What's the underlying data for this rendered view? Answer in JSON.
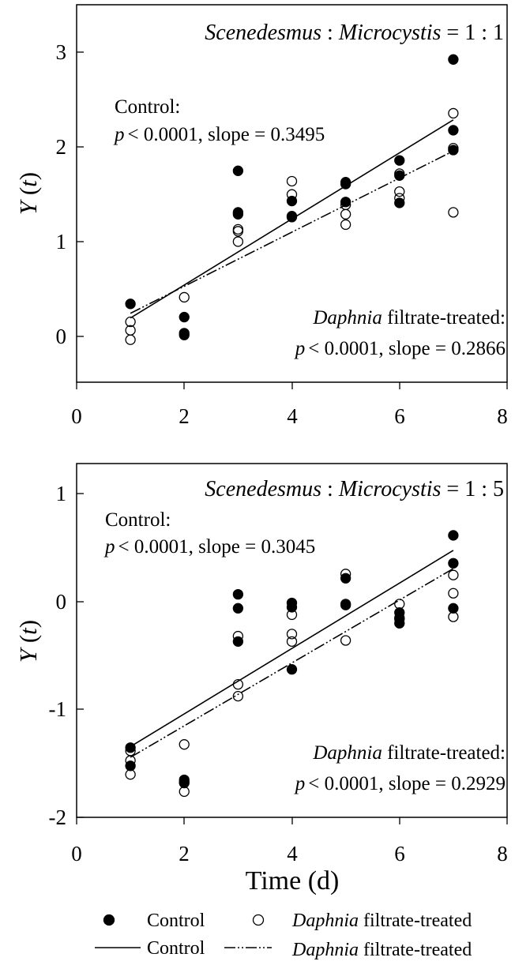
{
  "chart_data": [
    {
      "type": "scatter",
      "title_parts": [
        "Scenedesmus",
        " : ",
        "Microcystis",
        " = 1 : 1"
      ],
      "xlabel": "",
      "ylabel_parts": [
        "Y",
        " (",
        "t",
        ")"
      ],
      "xlim": [
        0,
        8
      ],
      "ylim": [
        -0.5,
        3.5
      ],
      "xticks": [
        "0",
        "2",
        "4",
        "6",
        "8"
      ],
      "xtick_values": [
        0,
        2,
        4,
        6,
        8
      ],
      "yticks": [
        "0",
        "1",
        "2",
        "3"
      ],
      "ytick_values": [
        0,
        1,
        2,
        3
      ],
      "series": [
        {
          "name": "Control",
          "marker": "filled-circle",
          "points": [
            [
              1,
              0.33
            ],
            [
              2,
              0.19
            ],
            [
              2,
              0.02
            ],
            [
              2,
              0.0
            ],
            [
              3,
              1.74
            ],
            [
              3,
              1.3
            ],
            [
              3,
              1.28
            ],
            [
              4,
              1.42
            ],
            [
              4,
              1.25
            ],
            [
              5,
              1.62
            ],
            [
              5,
              1.6
            ],
            [
              5,
              1.41
            ],
            [
              6,
              1.85
            ],
            [
              6,
              1.69
            ],
            [
              6,
              1.4
            ],
            [
              7,
              2.92
            ],
            [
              7,
              2.17
            ],
            [
              7,
              1.96
            ]
          ]
        },
        {
          "name": "Daphnia filtrate-treated",
          "marker": "open-circle",
          "points": [
            [
              1,
              0.14
            ],
            [
              1,
              0.05
            ],
            [
              1,
              -0.05
            ],
            [
              2,
              0.4
            ],
            [
              3,
              1.12
            ],
            [
              3,
              1.1
            ],
            [
              3,
              0.99
            ],
            [
              4,
              1.63
            ],
            [
              4,
              1.49
            ],
            [
              4,
              1.26
            ],
            [
              5,
              1.38
            ],
            [
              5,
              1.28
            ],
            [
              5,
              1.17
            ],
            [
              6,
              1.71
            ],
            [
              6,
              1.52
            ],
            [
              6,
              1.45
            ],
            [
              7,
              2.35
            ],
            [
              7,
              1.98
            ],
            [
              7,
              1.3
            ]
          ]
        }
      ],
      "fits": [
        {
          "name": "Control",
          "style": "solid",
          "slope": 0.3495,
          "x": [
            1,
            7
          ],
          "y": [
            0.18,
            2.28
          ]
        },
        {
          "name": "Daphnia filtrate-treated",
          "style": "dash-dot-dot",
          "slope": 0.2866,
          "x": [
            1,
            7
          ],
          "y": [
            0.23,
            1.95
          ]
        }
      ],
      "annotations": {
        "control_line1": "Control:",
        "control_line2": "< 0.0001, slope = 0.3495",
        "treated_italic": "Daphnia",
        "treated_line1": " filtrate-treated:",
        "treated_line2": "< 0.0001, slope = 0.2866",
        "p_symbol": "p"
      }
    },
    {
      "type": "scatter",
      "title_parts": [
        "Scenedesmus",
        " : ",
        "Microcystis",
        " = 1 : 5"
      ],
      "xlabel": "Time (d)",
      "ylabel_parts": [
        "Y",
        " (",
        "t",
        ")"
      ],
      "xlim": [
        0,
        8
      ],
      "ylim": [
        -2,
        1.3
      ],
      "xticks": [
        "0",
        "2",
        "4",
        "6",
        "8"
      ],
      "xtick_values": [
        0,
        2,
        4,
        6,
        8
      ],
      "yticks": [
        "-2",
        "-1",
        "0",
        "1"
      ],
      "ytick_values": [
        -2,
        -1,
        0,
        1
      ],
      "series": [
        {
          "name": "Control",
          "marker": "filled-circle",
          "points": [
            [
              1,
              -1.35
            ],
            [
              1,
              -1.52
            ],
            [
              2,
              -1.65
            ],
            [
              2,
              -1.67
            ],
            [
              3,
              0.08
            ],
            [
              3,
              -0.05
            ],
            [
              3,
              -0.36
            ],
            [
              4,
              0.0
            ],
            [
              4,
              -0.04
            ],
            [
              4,
              -0.62
            ],
            [
              5,
              0.23
            ],
            [
              5,
              -0.02
            ],
            [
              6,
              -0.09
            ],
            [
              6,
              -0.14
            ],
            [
              6,
              -0.19
            ],
            [
              7,
              0.63
            ],
            [
              7,
              0.37
            ],
            [
              7,
              -0.05
            ]
          ]
        },
        {
          "name": "Daphnia filtrate-treated",
          "marker": "open-circle",
          "points": [
            [
              1,
              -1.38
            ],
            [
              1,
              -1.47
            ],
            [
              1,
              -1.6
            ],
            [
              2,
              -1.32
            ],
            [
              2,
              -1.68
            ],
            [
              2,
              -1.76
            ],
            [
              3,
              -0.31
            ],
            [
              3,
              -0.76
            ],
            [
              3,
              -0.87
            ],
            [
              4,
              -0.11
            ],
            [
              4,
              -0.29
            ],
            [
              4,
              -0.36
            ],
            [
              5,
              0.27
            ],
            [
              5,
              -0.01
            ],
            [
              5,
              -0.35
            ],
            [
              6,
              -0.01
            ],
            [
              6,
              -0.15
            ],
            [
              7,
              0.26
            ],
            [
              7,
              0.09
            ],
            [
              7,
              -0.13
            ]
          ]
        }
      ],
      "fits": [
        {
          "name": "Control",
          "style": "solid",
          "slope": 0.3045,
          "x": [
            1,
            7
          ],
          "y": [
            -1.34,
            0.49
          ]
        },
        {
          "name": "Daphnia filtrate-treated",
          "style": "dash-dot-dot",
          "slope": 0.2929,
          "x": [
            1,
            7
          ],
          "y": [
            -1.44,
            0.32
          ]
        }
      ],
      "annotations": {
        "control_line1": "Control:",
        "control_line2": "< 0.0001, slope = 0.3045",
        "treated_italic": "Daphnia",
        "treated_line1": " filtrate-treated:",
        "treated_line2": "< 0.0001, slope = 0.2929",
        "p_symbol": "p"
      }
    }
  ],
  "legend": {
    "control_points": "Control",
    "treated_points_italic": "Daphnia",
    "treated_points_rest": " filtrate-treated",
    "control_line": "Control",
    "treated_line_italic": "Daphnia",
    "treated_line_rest": " filtrate-treated"
  }
}
